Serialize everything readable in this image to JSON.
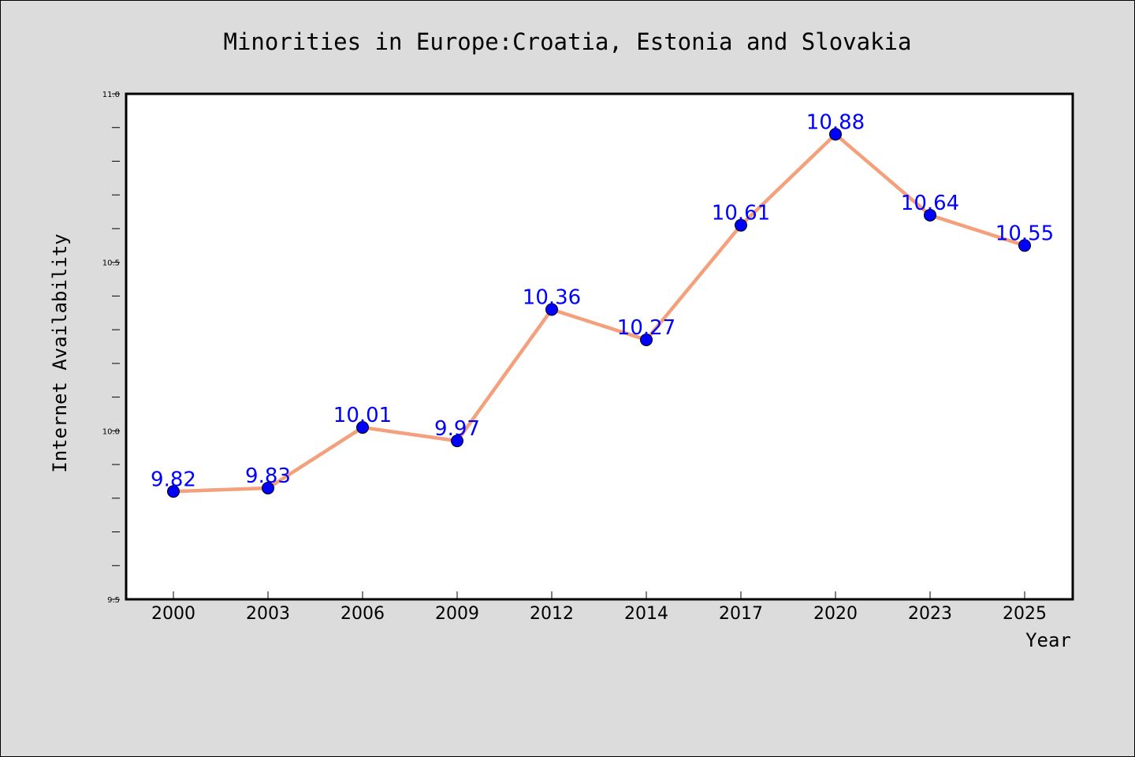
{
  "chart_data": {
    "type": "line",
    "title": "Minorities in Europe:Croatia, Estonia and Slovakia",
    "xlabel": "Year",
    "ylabel": "Internet Availability",
    "categories": [
      "2000",
      "2003",
      "2006",
      "2009",
      "2012",
      "2014",
      "2017",
      "2020",
      "2023",
      "2025"
    ],
    "values": [
      9.82,
      9.83,
      10.01,
      9.97,
      10.36,
      10.27,
      10.61,
      10.88,
      10.64,
      10.55
    ],
    "data_labels": [
      "9.82",
      "9.83",
      "10.01",
      "9.97",
      "10.36",
      "10.27",
      "10.61",
      "10.88",
      "10.64",
      "10.55"
    ],
    "ylim": [
      9.5,
      11.0
    ],
    "yticks": [
      "9.5",
      "10.0",
      "10.5",
      "11.0"
    ],
    "grid": false,
    "line_color": "#f4a07c",
    "marker_color": "#0000ff",
    "label_color": "#0000ff",
    "background_color": "#dcdcdc",
    "plot_background": "#ffffff"
  }
}
